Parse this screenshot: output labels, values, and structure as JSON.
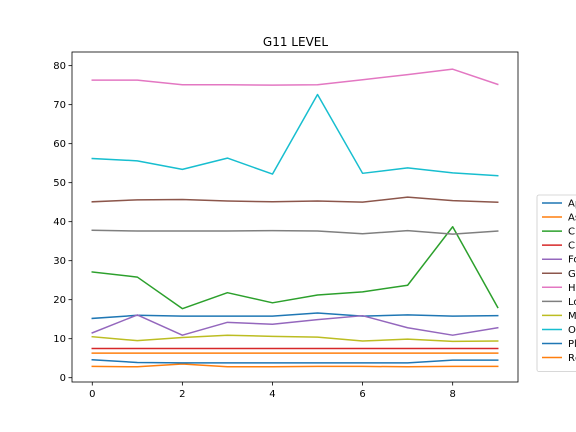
{
  "chart_data": {
    "type": "line",
    "title": "G11 LEVEL",
    "xlabel": "",
    "ylabel": "",
    "xlim": [
      -0.45,
      9.45
    ],
    "ylim": [
      -1.1,
      83.5
    ],
    "x_ticks": [
      0,
      2,
      4,
      6,
      8
    ],
    "y_ticks": [
      0,
      10,
      20,
      30,
      40,
      50,
      60,
      70,
      80
    ],
    "legend_position": "right",
    "x": [
      0,
      1,
      2,
      3,
      4,
      5,
      6,
      7,
      8,
      9
    ],
    "series": [
      {
        "name": "Ap",
        "color": "#1f77b4",
        "values": [
          15.2,
          16.0,
          15.8,
          15.8,
          15.8,
          16.6,
          15.8,
          16.1,
          15.8,
          15.9
        ]
      },
      {
        "name": "As",
        "color": "#ff7f0e",
        "values": [
          2.9,
          2.8,
          3.5,
          2.8,
          2.8,
          2.9,
          2.9,
          2.8,
          2.9,
          2.9
        ]
      },
      {
        "name": "C",
        "color": "#2ca02c",
        "values": [
          27.1,
          25.8,
          17.7,
          21.8,
          19.2,
          21.2,
          22.0,
          23.7,
          38.7,
          18.0
        ]
      },
      {
        "name": "C",
        "color": "#d62728",
        "values": [
          7.5,
          7.5,
          7.5,
          7.5,
          7.5,
          7.5,
          7.5,
          7.5,
          7.5,
          7.5
        ]
      },
      {
        "name": "Fo",
        "color": "#9467bd",
        "values": [
          11.5,
          16.1,
          10.9,
          14.2,
          13.7,
          14.9,
          15.9,
          12.8,
          10.9,
          12.8
        ]
      },
      {
        "name": "G",
        "color": "#8c564b",
        "values": [
          45.1,
          45.6,
          45.7,
          45.3,
          45.1,
          45.3,
          45.0,
          46.3,
          45.4,
          45.0
        ]
      },
      {
        "name": "H",
        "color": "#e377c2",
        "values": [
          76.3,
          76.3,
          75.1,
          75.1,
          75.0,
          75.1,
          76.4,
          77.7,
          79.1,
          75.2
        ]
      },
      {
        "name": "Lo",
        "color": "#7f7f7f",
        "values": [
          37.8,
          37.6,
          37.6,
          37.6,
          37.7,
          37.6,
          36.9,
          37.7,
          36.8,
          37.6
        ]
      },
      {
        "name": "M",
        "color": "#bcbd22",
        "values": [
          10.5,
          9.5,
          10.3,
          10.9,
          10.6,
          10.4,
          9.4,
          9.9,
          9.3,
          9.4
        ]
      },
      {
        "name": "O",
        "color": "#17becf",
        "values": [
          56.2,
          55.6,
          53.4,
          56.3,
          52.2,
          72.6,
          52.4,
          53.8,
          52.5,
          51.8
        ]
      },
      {
        "name": "Pl",
        "color": "#1f77b4",
        "values": [
          4.6,
          3.9,
          3.8,
          3.8,
          3.8,
          3.8,
          3.8,
          3.8,
          4.5,
          4.5
        ]
      },
      {
        "name": "Rc",
        "color": "#ff7f0e",
        "values": [
          6.3,
          6.3,
          6.3,
          6.3,
          6.3,
          6.3,
          6.3,
          6.3,
          6.3,
          6.3
        ]
      }
    ]
  }
}
